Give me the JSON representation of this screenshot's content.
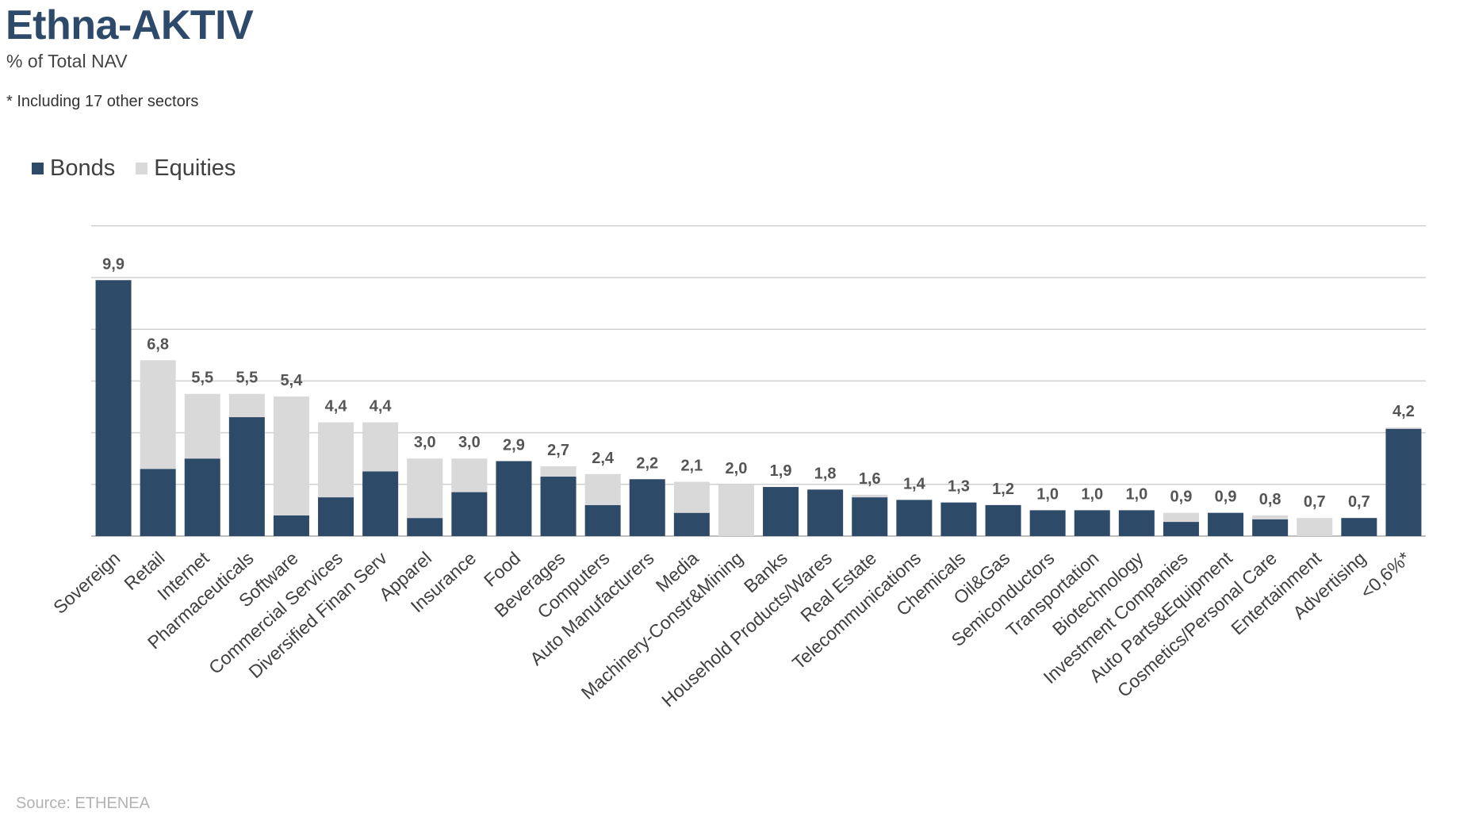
{
  "header": {
    "title": "Ethna-AKTIV",
    "subtitle": "% of Total NAV",
    "footnote": "* Including 17 other sectors"
  },
  "footer": {
    "source": "Source: ETHENEA"
  },
  "colors": {
    "bonds": "#2e4a69",
    "equities": "#d9d9d9",
    "grid": "#d0d0d0",
    "label": "#555555"
  },
  "chart_data": {
    "type": "bar",
    "stacked": true,
    "categories": [
      "Sovereign",
      "Retail",
      "Internet",
      "Pharmaceuticals",
      "Software",
      "Commercial Services",
      "Diversified Finan Serv",
      "Apparel",
      "Insurance",
      "Food",
      "Beverages",
      "Computers",
      "Auto Manufacturers",
      "Media",
      "Machinery-Constr&Mining",
      "Banks",
      "Household Products/Wares",
      "Real Estate",
      "Telecommunications",
      "Chemicals",
      "Oil&Gas",
      "Semiconductors",
      "Transportation",
      "Biotechnology",
      "Investment Companies",
      "Auto Parts&Equipment",
      "Cosmetics/Personal Care",
      "Entertainment",
      "Advertising",
      "<0,6%*"
    ],
    "series": [
      {
        "name": "Bonds",
        "values": [
          9.9,
          2.6,
          3.0,
          4.6,
          0.8,
          1.5,
          2.5,
          0.7,
          1.7,
          2.9,
          2.3,
          1.2,
          2.2,
          0.9,
          0.0,
          1.9,
          1.8,
          1.5,
          1.4,
          1.3,
          1.2,
          1.0,
          1.0,
          1.0,
          0.55,
          0.9,
          0.65,
          0.0,
          0.7,
          4.15
        ]
      },
      {
        "name": "Equities",
        "values": [
          0.0,
          4.2,
          2.5,
          0.9,
          4.6,
          2.9,
          1.9,
          2.3,
          1.3,
          0.0,
          0.4,
          1.2,
          0.0,
          1.2,
          2.0,
          0.0,
          0.0,
          0.1,
          0.0,
          0.0,
          0.0,
          0.0,
          0.0,
          0.0,
          0.35,
          0.0,
          0.15,
          0.7,
          0.0,
          0.05
        ]
      }
    ],
    "totals": [
      "9,9",
      "6,8",
      "5,5",
      "5,5",
      "5,4",
      "4,4",
      "4,4",
      "3,0",
      "3,0",
      "2,9",
      "2,7",
      "2,4",
      "2,2",
      "2,1",
      "2,0",
      "1,9",
      "1,8",
      "1,6",
      "1,4",
      "1,3",
      "1,2",
      "1,0",
      "1,0",
      "1,0",
      "0,9",
      "0,9",
      "0,8",
      "0,7",
      "0,7",
      "4,2"
    ],
    "ylim": [
      0,
      12
    ],
    "gridlines": [
      0,
      2,
      4,
      6,
      8,
      10,
      12
    ],
    "legend_position": "top-left"
  }
}
